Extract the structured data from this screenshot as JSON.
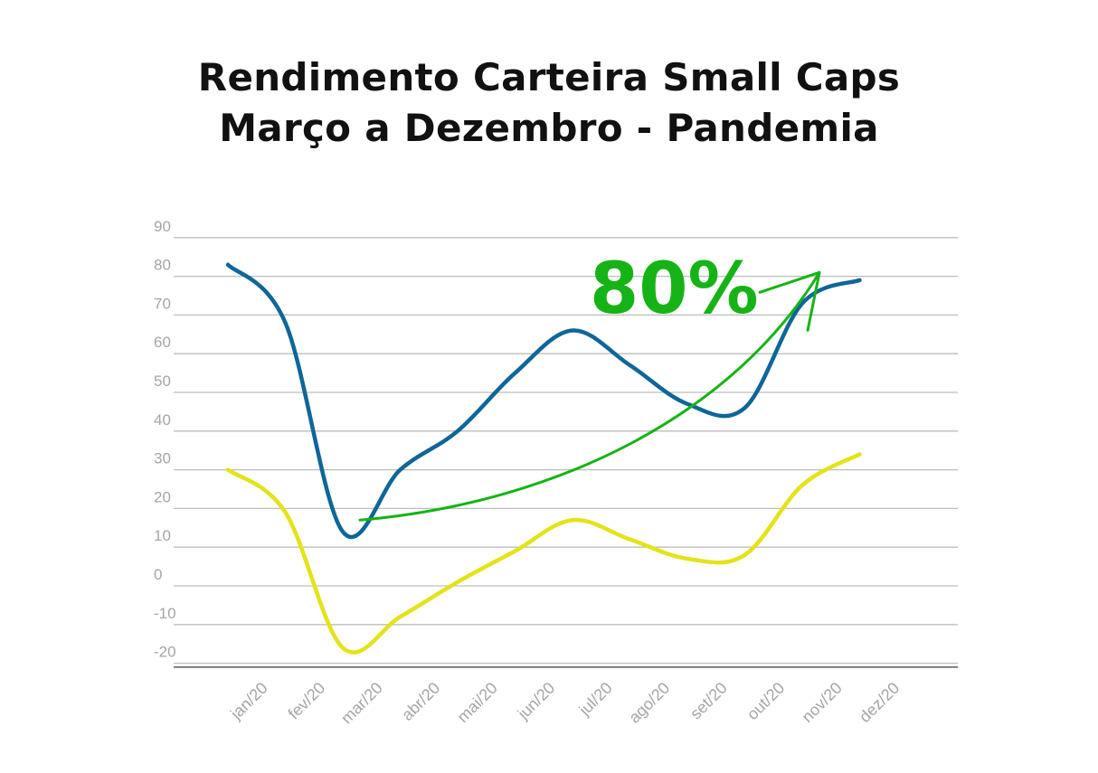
{
  "chart_data": {
    "type": "line",
    "title_lines": [
      "Rendimento Carteira Small Caps",
      "Março a Dezembro - Pandemia"
    ],
    "categories": [
      "jan/20",
      "fev/20",
      "mar/20",
      "abr/20",
      "mai/20",
      "jun/20",
      "jul/20",
      "ago/20",
      "set/20",
      "out/20",
      "nov/20",
      "dez/20"
    ],
    "y_ticks": [
      90,
      80,
      70,
      60,
      50,
      40,
      30,
      20,
      10,
      0,
      -10,
      -20
    ],
    "y_tick_labels": [
      "90",
      "80",
      "70",
      "60",
      "50",
      "40",
      "30",
      "20",
      "10",
      "0",
      "-10",
      "-20"
    ],
    "ylim": [
      -22,
      95
    ],
    "grid": true,
    "series": [
      {
        "color": "#0e6699",
        "values": [
          83,
          68,
          14,
          30,
          40,
          55,
          66,
          57,
          47,
          46,
          73,
          79
        ]
      },
      {
        "color": "#e3e31a",
        "values": [
          30,
          19,
          -16,
          -8,
          1,
          9,
          17,
          12,
          7,
          8,
          26,
          34
        ]
      }
    ],
    "annotation": {
      "text": "80%",
      "color": "#16b316",
      "arrow_from": {
        "category_index": 2.3,
        "value": 17
      },
      "arrow_to": {
        "category_index": 10.3,
        "value": 81
      }
    }
  }
}
